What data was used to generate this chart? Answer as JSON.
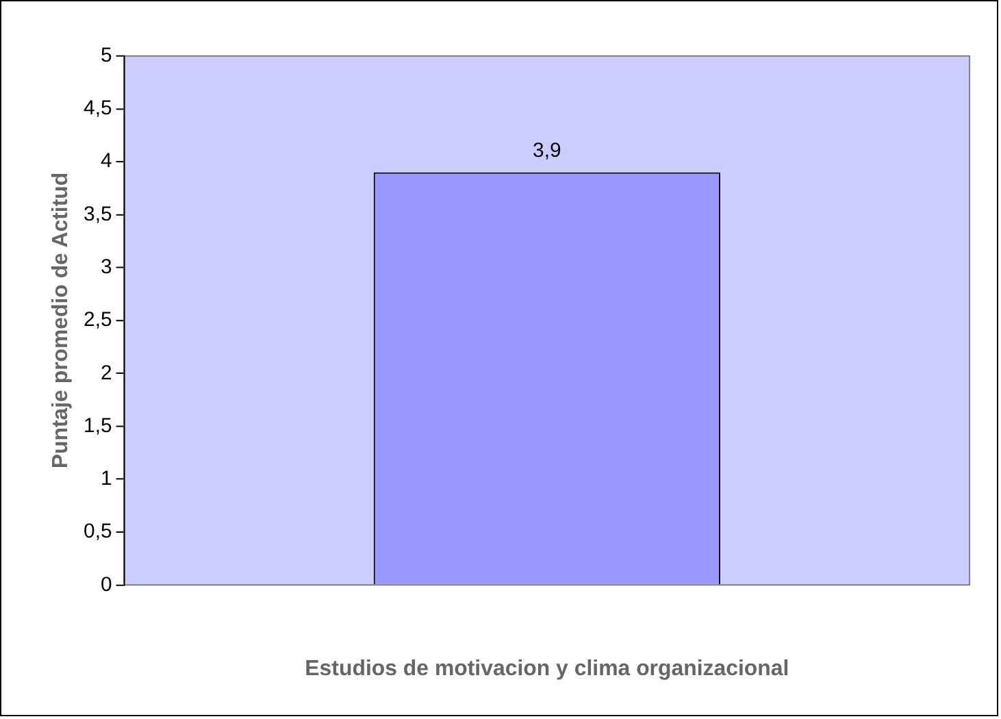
{
  "chart_data": {
    "type": "bar",
    "xlabel": "Estudios de motivacion y clima organizacional",
    "ylabel": "Puntaje promedio de Actitud",
    "categories": [
      null
    ],
    "values": [
      3.9
    ],
    "value_labels": [
      "3,9"
    ],
    "color": "#9999ff",
    "ylim": [
      0,
      5
    ],
    "yticks": [
      0,
      {
        "value": 0.5,
        "label": "0,5"
      },
      1,
      {
        "value": 1.5,
        "label": "1,5"
      },
      2,
      {
        "value": 2.5,
        "label": "2,5"
      },
      3,
      {
        "value": 3.5,
        "label": "3,5"
      },
      4,
      {
        "value": 4.5,
        "label": "4,5"
      },
      5
    ]
  }
}
